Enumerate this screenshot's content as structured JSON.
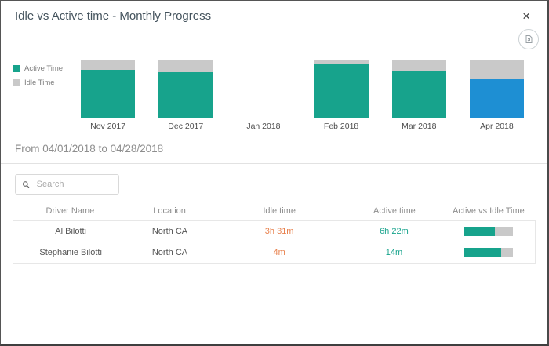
{
  "dialog": {
    "title": "Idle vs Active time - Monthly Progress",
    "close_label": "×"
  },
  "chart_data": {
    "type": "bar",
    "stacked": true,
    "title": "",
    "xlabel": "",
    "ylabel": "",
    "ylim": [
      0,
      100
    ],
    "legend_position": "left",
    "categories": [
      "Nov 2017",
      "Dec 2017",
      "Jan 2018",
      "Feb 2018",
      "Mar 2018",
      "Apr 2018"
    ],
    "series": [
      {
        "name": "Active Time",
        "color": "#17A38C",
        "values": [
          84,
          79,
          0,
          95,
          81,
          67
        ]
      },
      {
        "name": "Idle Time",
        "color": "#C9C9C9",
        "values": [
          16,
          21,
          0,
          5,
          19,
          33
        ]
      }
    ],
    "selected_category": "Apr 2018",
    "selected_color": "#1E8FD3"
  },
  "period": {
    "label": "From 04/01/2018 to 04/28/2018"
  },
  "search": {
    "placeholder": "Search"
  },
  "table": {
    "columns": [
      "Driver Name",
      "Location",
      "Idle time",
      "Active time",
      "Active vs Idle Time"
    ],
    "rows": [
      {
        "driver_name": "Al Bilotti",
        "location": "North CA",
        "idle_time": "3h 31m",
        "active_time": "6h 22m",
        "active_pct": 64
      },
      {
        "driver_name": "Stephanie Bilotti",
        "location": "North CA",
        "idle_time": "4m",
        "active_time": "14m",
        "active_pct": 77
      }
    ]
  },
  "colors": {
    "active": "#17A38C",
    "idle": "#C9C9C9",
    "selected_month": "#1E8FD3",
    "idle_text": "#E8814D",
    "active_text": "#17A38C"
  }
}
